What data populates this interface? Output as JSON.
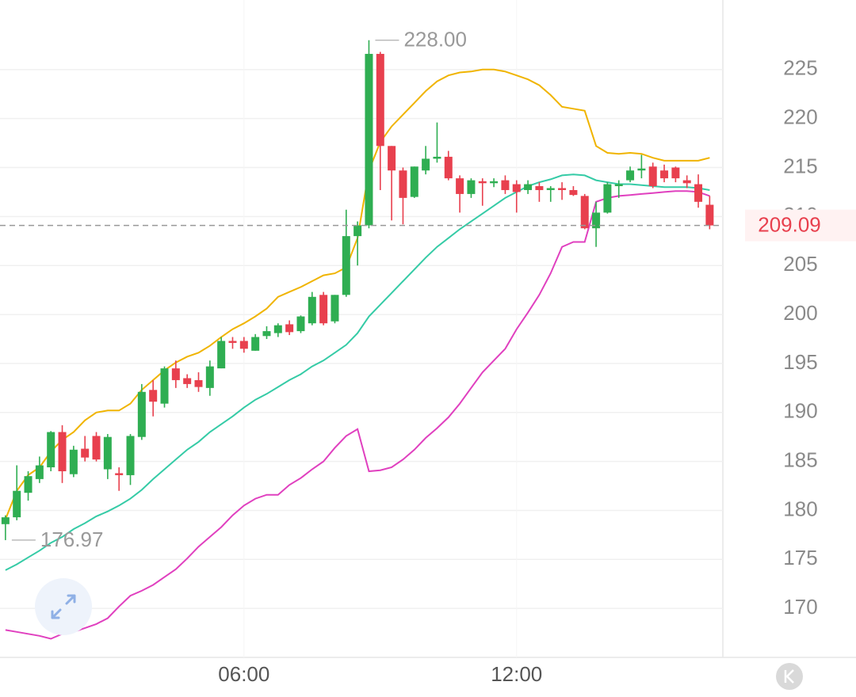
{
  "chart_data": {
    "type": "candlestick",
    "x": [
      0.75,
      1,
      1.25,
      1.5,
      1.75,
      2,
      2.25,
      2.5,
      2.75,
      3,
      3.25,
      3.5,
      3.75,
      4,
      4.25,
      4.5,
      4.75,
      5,
      5.25,
      5.5,
      5.75,
      6,
      6.25,
      6.5,
      6.75,
      7,
      7.25,
      7.5,
      7.75,
      8,
      8.25,
      8.5,
      8.75,
      9,
      9.25,
      9.5,
      9.75,
      10,
      10.25,
      10.5,
      10.75,
      11,
      11.25,
      11.5,
      11.75,
      12,
      12.25,
      12.5,
      12.75,
      13,
      13.25,
      13.5,
      13.75,
      14,
      14.25,
      14.5,
      14.75,
      15,
      15.25,
      15.5,
      15.75,
      16,
      16.25
    ],
    "open": [
      178.6,
      179.3,
      181.8,
      183.2,
      184.4,
      188.0,
      183.7,
      186.3,
      187.6,
      184.2,
      183.8,
      183.6,
      187.5,
      192.3,
      190.9,
      194.5,
      193.5,
      193.3,
      192.5,
      194.5,
      197.3,
      197.3,
      196.3,
      197.8,
      198.1,
      199.0,
      198.3,
      199.1,
      202.0,
      199.3,
      202.0,
      208.0,
      209.1,
      226.6,
      217.2,
      214.7,
      212.0,
      214.7,
      215.9,
      216.1,
      213.9,
      212.3,
      213.6,
      213.4,
      213.7,
      213.3,
      212.7,
      213.1,
      212.7,
      212.9,
      212.7,
      212.1,
      208.8,
      210.4,
      213.1,
      213.7,
      214.7,
      215.1,
      214.7,
      215.0,
      213.7,
      213.3,
      211.2
    ],
    "high": [
      179.5,
      184.6,
      184.0,
      185.5,
      188.1,
      188.7,
      186.6,
      187.6,
      188.0,
      187.8,
      184.4,
      187.8,
      192.9,
      193.3,
      194.7,
      195.3,
      193.9,
      194.1,
      195.3,
      197.7,
      197.7,
      197.7,
      198.0,
      198.8,
      199.1,
      199.4,
      199.9,
      202.3,
      202.3,
      202.0,
      210.7,
      209.5,
      228.0,
      226.8,
      217.2,
      215.0,
      215.1,
      217.2,
      219.6,
      216.7,
      214.2,
      213.9,
      213.9,
      213.9,
      214.2,
      213.7,
      213.7,
      213.5,
      213.1,
      213.5,
      213.1,
      212.3,
      211.5,
      213.5,
      213.7,
      215.1,
      216.3,
      215.5,
      215.3,
      215.1,
      214.2,
      214.3,
      212.1
    ],
    "low": [
      176.97,
      179.0,
      181.0,
      182.8,
      184.0,
      182.8,
      183.4,
      185.0,
      185.0,
      183.2,
      182.0,
      182.6,
      187.2,
      189.6,
      190.5,
      192.5,
      192.5,
      192.1,
      191.7,
      194.5,
      196.5,
      196.1,
      196.3,
      197.5,
      197.7,
      197.9,
      198.1,
      198.9,
      198.9,
      199.1,
      201.8,
      205.0,
      208.8,
      212.7,
      209.6,
      209.2,
      211.9,
      214.3,
      215.5,
      213.7,
      210.4,
      211.9,
      211.1,
      213.0,
      212.3,
      210.4,
      212.3,
      211.5,
      211.5,
      211.7,
      212.1,
      208.7,
      206.9,
      210.3,
      211.9,
      213.5,
      213.9,
      212.9,
      213.5,
      213.5,
      212.9,
      210.9,
      208.7
    ],
    "close": [
      179.3,
      182.0,
      183.5,
      184.6,
      188.0,
      184.0,
      186.2,
      185.4,
      185.2,
      187.5,
      183.6,
      187.6,
      192.1,
      191.1,
      194.5,
      193.3,
      192.9,
      192.6,
      194.7,
      197.3,
      197.1,
      196.5,
      197.7,
      198.3,
      198.9,
      198.2,
      199.8,
      201.8,
      199.1,
      202.0,
      208.0,
      209.1,
      226.6,
      217.2,
      214.7,
      211.9,
      215.1,
      215.9,
      216.1,
      213.9,
      212.3,
      213.7,
      213.4,
      213.6,
      212.7,
      212.5,
      213.3,
      212.7,
      212.9,
      212.7,
      212.2,
      208.8,
      210.4,
      213.3,
      213.3,
      214.7,
      214.9,
      213.1,
      213.9,
      213.9,
      213.4,
      211.5,
      209.09
    ],
    "up_color": "#2fae52",
    "down_color": "#e8404e",
    "lines": [
      {
        "color": "#f0b400",
        "values": [
          179.1,
          182.0,
          183.6,
          184.4,
          186.0,
          187.2,
          188.0,
          189.2,
          190.0,
          190.2,
          190.2,
          190.9,
          192.3,
          193.3,
          194.3,
          195.1,
          195.7,
          196.1,
          196.8,
          197.7,
          198.5,
          199.1,
          199.8,
          200.6,
          201.8,
          202.3,
          202.8,
          203.4,
          204.0,
          204.2,
          204.8,
          207.8,
          214.7,
          217.6,
          219.2,
          220.4,
          221.6,
          222.8,
          223.8,
          224.4,
          224.7,
          224.8,
          225.0,
          225.0,
          224.8,
          224.4,
          224.0,
          223.4,
          222.4,
          221.2,
          221.0,
          220.8,
          217.2,
          216.5,
          216.4,
          216.5,
          216.4,
          216.0,
          215.7,
          215.7,
          215.7,
          215.7,
          216.0
        ]
      },
      {
        "color": "#35cba6",
        "values": [
          173.9,
          174.5,
          175.2,
          175.9,
          176.7,
          177.3,
          178.1,
          178.7,
          179.4,
          179.9,
          180.5,
          181.2,
          182.1,
          183.2,
          184.2,
          185.2,
          186.2,
          187.0,
          188.0,
          188.8,
          189.6,
          190.5,
          191.3,
          191.9,
          192.6,
          193.3,
          193.9,
          194.7,
          195.3,
          196.1,
          196.9,
          198.1,
          199.8,
          201.0,
          202.2,
          203.4,
          204.6,
          205.8,
          206.9,
          207.8,
          208.7,
          209.5,
          210.3,
          211.1,
          211.9,
          212.5,
          213.1,
          213.5,
          213.8,
          214.2,
          214.3,
          214.2,
          213.7,
          213.5,
          213.3,
          213.3,
          213.2,
          213.1,
          213.0,
          213.0,
          213.0,
          212.9,
          212.7
        ]
      },
      {
        "color": "#e040bf",
        "values": [
          167.8,
          167.6,
          167.4,
          167.2,
          166.9,
          167.4,
          167.6,
          168.0,
          168.4,
          169.0,
          170.2,
          171.3,
          171.8,
          172.4,
          173.2,
          174.0,
          175.1,
          176.3,
          177.3,
          178.3,
          179.5,
          180.5,
          181.2,
          181.6,
          181.6,
          182.6,
          183.3,
          184.2,
          185.0,
          186.4,
          187.6,
          188.3,
          184.0,
          184.1,
          184.4,
          185.2,
          186.2,
          187.4,
          188.4,
          189.5,
          190.9,
          192.5,
          194.1,
          195.3,
          196.5,
          198.5,
          200.2,
          202.0,
          204.2,
          206.9,
          207.4,
          207.4,
          211.5,
          211.9,
          212.1,
          212.2,
          212.3,
          212.4,
          212.5,
          212.6,
          212.6,
          212.5,
          212.1
        ]
      }
    ],
    "xlim": [
      0.63,
      16.54
    ],
    "xticks": [
      {
        "value": 6,
        "label": "06:00"
      },
      {
        "value": 12,
        "label": "12:00"
      }
    ],
    "ylim": [
      165,
      232.1
    ],
    "yticks": [
      170,
      175,
      180,
      185,
      190,
      195,
      200,
      205,
      210,
      215,
      220,
      225
    ],
    "grid": true,
    "high_label": "228.00",
    "low_label": "176.97",
    "last_label": "209.09"
  }
}
